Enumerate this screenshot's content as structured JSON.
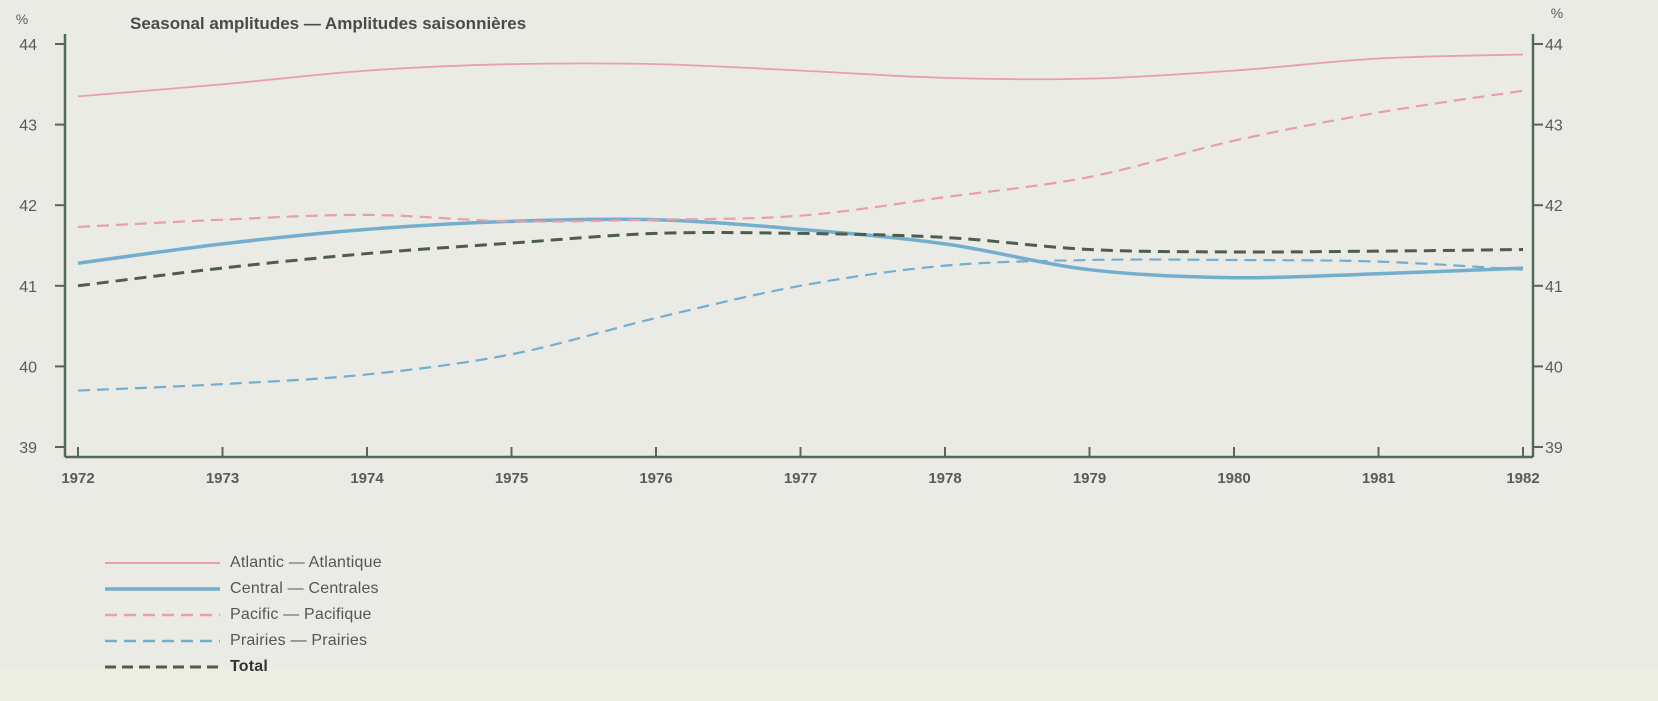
{
  "chart_data": {
    "type": "line",
    "title": "Seasonal amplitudes — Amplitudes saisonnières",
    "ylabel": "%",
    "ylabel_right": "%",
    "xlabel": "",
    "x": [
      1972,
      1973,
      1974,
      1975,
      1976,
      1977,
      1978,
      1979,
      1980,
      1981,
      1982
    ],
    "x_tick_labels": [
      "1972",
      "1973",
      "1974",
      "1975",
      "1976",
      "1977",
      "1978",
      "1979",
      "1980",
      "1981",
      "1982"
    ],
    "ylim": [
      39,
      44
    ],
    "y_ticks": [
      39,
      40,
      41,
      42,
      43,
      44
    ],
    "y_tick_labels": [
      "39",
      "40",
      "41",
      "42",
      "43",
      "44"
    ],
    "grid": false,
    "legend_position": "bottom-left",
    "series": [
      {
        "name": "Atlantic — Atlantique",
        "style": "solid",
        "color": "#e7a0a8",
        "values": [
          43.35,
          43.5,
          43.67,
          43.75,
          43.75,
          43.67,
          43.58,
          43.57,
          43.67,
          43.82,
          43.87
        ]
      },
      {
        "name": "Central — Centrales",
        "style": "solid-thick",
        "color": "#74aecf",
        "values": [
          41.28,
          41.52,
          41.7,
          41.8,
          41.82,
          41.7,
          41.52,
          41.2,
          41.1,
          41.15,
          41.22
        ]
      },
      {
        "name": "Pacific — Pacifique",
        "style": "dashed",
        "color": "#e7a0a8",
        "values": [
          41.73,
          41.82,
          41.88,
          41.8,
          41.82,
          41.87,
          42.1,
          42.35,
          42.8,
          43.15,
          43.42
        ]
      },
      {
        "name": "Prairies — Prairies",
        "style": "dashed",
        "color": "#74aecf",
        "values": [
          39.7,
          39.78,
          39.9,
          40.15,
          40.6,
          41.0,
          41.25,
          41.32,
          41.32,
          41.3,
          41.2
        ]
      },
      {
        "name": "Total",
        "style": "dashed-dark",
        "color": "#4c5d4c",
        "values": [
          41.0,
          41.22,
          41.4,
          41.53,
          41.65,
          41.65,
          41.6,
          41.45,
          41.42,
          41.43,
          41.45
        ]
      }
    ]
  },
  "colors": {
    "axis": "#54685a",
    "tick_text": "#5a5a5a",
    "background": "#ebebe5"
  }
}
